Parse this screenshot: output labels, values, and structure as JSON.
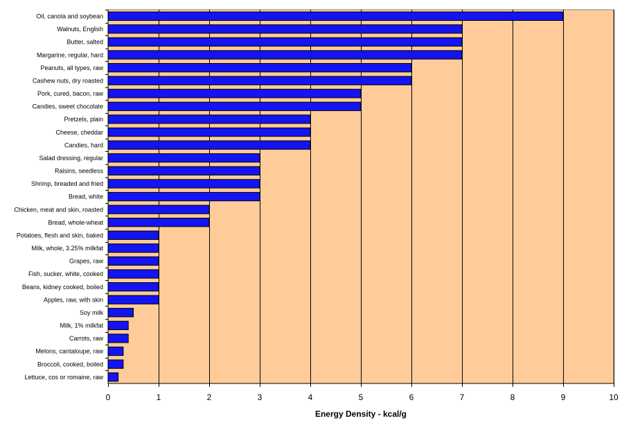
{
  "chart_data": {
    "type": "bar",
    "orientation": "horizontal",
    "categories": [
      "Oil, canola and soybean",
      "Walnuts, English",
      "Butter, salted",
      "Margarine, regular, hard",
      "Peanuts, all types, raw",
      "Cashew nuts, dry roasted",
      "Pork, cured, bacon, raw",
      "Candies, sweet chocolate",
      "Pretzels, plain",
      "Cheese, cheddar",
      "Candies, hard",
      "Salad dressing, regular",
      "Raisins, seedless",
      "Shrimp, breaded and fried",
      "Bread, white",
      "Chicken, meat and skin, roasted",
      "Bread, whole-wheat",
      "Potatoes, flesh and skin, baked",
      "Milk, whole, 3.25% milkfat",
      "Grapes, raw",
      "Fish, sucker, white, cooked",
      "Beans, kidney cooked, boiled",
      "Apples, raw, with skin",
      "Soy milk",
      "Milk, 1% milkfat",
      "Carrots, raw",
      "Melons, cantaloupe, raw",
      "Broccoli, cooked, boiled",
      "Lettuce, cos or romaine, raw"
    ],
    "values": [
      9,
      7,
      7,
      7,
      6,
      6,
      5,
      5,
      4,
      4,
      4,
      3,
      3,
      3,
      3,
      2,
      2,
      1,
      1,
      1,
      1,
      1,
      1,
      0.5,
      0.4,
      0.4,
      0.3,
      0.3,
      0.2
    ],
    "xlabel": "Energy Density - kcal/g",
    "xlim": [
      0,
      10
    ],
    "xticks": [
      0,
      1,
      2,
      3,
      4,
      5,
      6,
      7,
      8,
      9,
      10
    ],
    "grid": "vertical",
    "legend": "none",
    "colors": {
      "bar": "#1414f0",
      "bar_border": "#000000",
      "plot_background": "#ffcc99",
      "gridline": "#000000"
    }
  }
}
